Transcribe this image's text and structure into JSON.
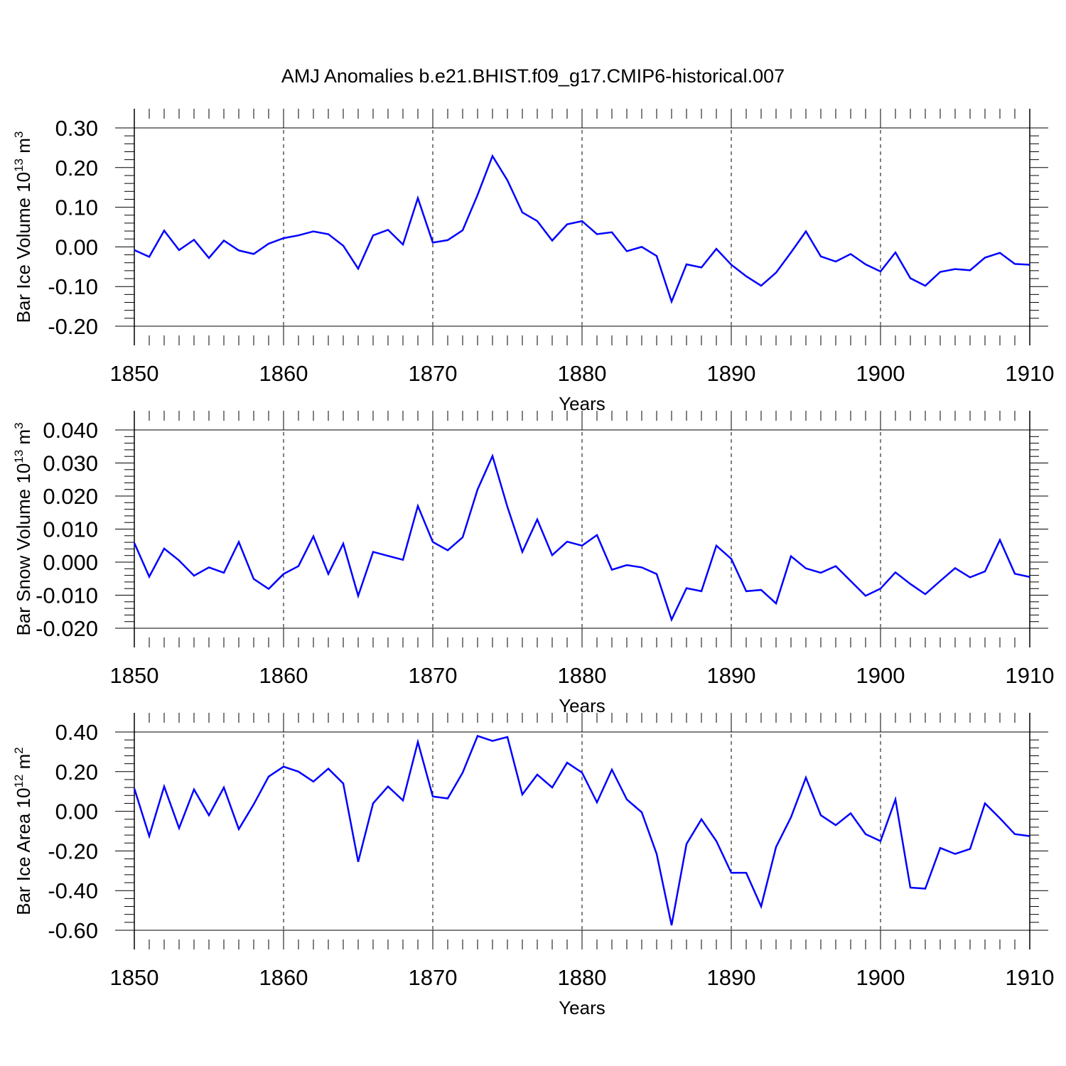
{
  "title": "AMJ Anomalies b.e21.BHIST.f09_g17.CMIP6-historical.007",
  "line_color": "#0000ff",
  "chart_data": [
    {
      "type": "line",
      "ylabel": {
        "text": "Bar Ice Volume 10",
        "sup": "13",
        "unit": " m",
        "unit_sup": "3"
      },
      "xlabel": "Years",
      "xlim": [
        1850,
        1910
      ],
      "ylim": [
        -0.2,
        0.3
      ],
      "x_ticks": [
        "1850",
        "1860",
        "1870",
        "1880",
        "1890",
        "1900",
        "1910"
      ],
      "y_ticks": [
        "-0.20",
        "-0.10",
        "0.00",
        "0.10",
        "0.20",
        "0.30"
      ],
      "grid": "vertical-dashed",
      "x_start": 1850,
      "values": [
        -0.008,
        -0.025,
        0.041,
        -0.008,
        0.018,
        -0.028,
        0.016,
        -0.009,
        -0.018,
        0.008,
        0.022,
        0.029,
        0.039,
        0.032,
        0.003,
        -0.055,
        0.029,
        0.043,
        0.006,
        0.123,
        0.011,
        0.017,
        0.042,
        0.131,
        0.229,
        0.168,
        0.087,
        0.065,
        0.016,
        0.057,
        0.065,
        0.032,
        0.037,
        -0.011,
        0.0,
        -0.023,
        -0.138,
        -0.044,
        -0.052,
        -0.005,
        -0.045,
        -0.074,
        -0.098,
        -0.065,
        -0.014,
        0.039,
        -0.024,
        -0.037,
        -0.018,
        -0.044,
        -0.062,
        -0.014,
        -0.079,
        -0.098,
        -0.063,
        -0.056,
        -0.059,
        -0.027,
        -0.015,
        -0.043,
        -0.045
      ]
    },
    {
      "type": "line",
      "ylabel": {
        "text": "Bar Snow Volume 10",
        "sup": "13",
        "unit": " m",
        "unit_sup": "3"
      },
      "xlabel": "Years",
      "xlim": [
        1850,
        1910
      ],
      "ylim": [
        -0.02,
        0.04
      ],
      "x_ticks": [
        "1850",
        "1860",
        "1870",
        "1880",
        "1890",
        "1900",
        "1910"
      ],
      "y_ticks": [
        "-0.020",
        "-0.010",
        "0.000",
        "0.010",
        "0.020",
        "0.030",
        "0.040"
      ],
      "grid": "vertical-dashed",
      "x_start": 1850,
      "values": [
        0.0058,
        -0.0044,
        0.0041,
        0.0005,
        -0.0041,
        -0.0016,
        -0.0032,
        0.0061,
        -0.0051,
        -0.0081,
        -0.0036,
        -0.0012,
        0.0078,
        -0.0036,
        0.0056,
        -0.0102,
        0.0031,
        0.0019,
        0.0007,
        0.017,
        0.0061,
        0.0036,
        0.0075,
        0.022,
        0.0321,
        0.0167,
        0.0031,
        0.0129,
        0.0021,
        0.0062,
        0.005,
        0.0082,
        -0.0023,
        -0.0009,
        -0.0016,
        -0.0036,
        -0.0174,
        -0.0079,
        -0.0088,
        0.005,
        0.001,
        -0.0088,
        -0.0084,
        -0.0125,
        0.0018,
        -0.0019,
        -0.0032,
        -0.0012,
        -0.0057,
        -0.0102,
        -0.008,
        -0.0031,
        -0.0066,
        -0.0097,
        -0.0057,
        -0.0018,
        -0.0046,
        -0.0028,
        0.0067,
        -0.0035,
        -0.0045
      ]
    },
    {
      "type": "line",
      "ylabel": {
        "text": "Bar Ice Area 10",
        "sup": "12",
        "unit": " m",
        "unit_sup": "2"
      },
      "xlabel": "Years",
      "xlim": [
        1850,
        1910
      ],
      "ylim": [
        -0.6,
        0.4
      ],
      "x_ticks": [
        "1850",
        "1860",
        "1870",
        "1880",
        "1890",
        "1900",
        "1910"
      ],
      "y_ticks": [
        "-0.60",
        "-0.40",
        "-0.20",
        "0.00",
        "0.20",
        "0.40"
      ],
      "grid": "vertical-dashed",
      "x_start": 1850,
      "values": [
        0.115,
        -0.125,
        0.125,
        -0.085,
        0.11,
        -0.02,
        0.12,
        -0.09,
        0.035,
        0.175,
        0.225,
        0.2,
        0.15,
        0.215,
        0.14,
        -0.255,
        0.04,
        0.125,
        0.055,
        0.35,
        0.075,
        0.065,
        0.195,
        0.38,
        0.355,
        0.375,
        0.085,
        0.185,
        0.12,
        0.245,
        0.195,
        0.045,
        0.21,
        0.06,
        -0.005,
        -0.215,
        -0.575,
        -0.165,
        -0.04,
        -0.15,
        -0.31,
        -0.31,
        -0.48,
        -0.18,
        -0.03,
        0.17,
        -0.02,
        -0.07,
        -0.01,
        -0.115,
        -0.15,
        0.06,
        -0.385,
        -0.39,
        -0.185,
        -0.215,
        -0.19,
        0.04,
        -0.035,
        -0.115,
        -0.125
      ]
    }
  ]
}
